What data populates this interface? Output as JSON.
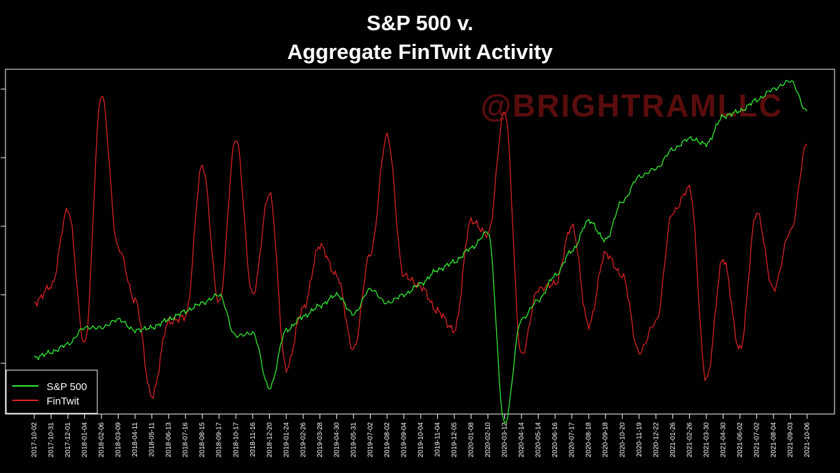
{
  "chart_data": {
    "type": "line",
    "title_lines": [
      "S&P 500 v.",
      "Aggregate FinTwit Activity"
    ],
    "watermark": "@BRIGHTRAMLLC",
    "xlabel": "",
    "ylabel": "",
    "x": [
      "2017-10-02",
      "2017-10-31",
      "2017-12-01",
      "2018-01-04",
      "2018-02-06",
      "2018-03-09",
      "2018-04-11",
      "2018-05-11",
      "2018-06-13",
      "2018-07-16",
      "2018-08-15",
      "2018-09-17",
      "2018-10-17",
      "2018-11-16",
      "2018-12-20",
      "2019-01-24",
      "2019-02-26",
      "2019-03-28",
      "2019-04-30",
      "2019-05-31",
      "2019-07-02",
      "2019-08-02",
      "2019-09-04",
      "2019-10-04",
      "2019-11-04",
      "2019-12-05",
      "2020-01-08",
      "2020-02-10",
      "2020-03-12",
      "2020-04-14",
      "2020-05-14",
      "2020-06-16",
      "2020-07-17",
      "2020-08-18",
      "2020-09-18",
      "2020-10-20",
      "2020-11-19",
      "2020-12-22",
      "2021-01-26",
      "2021-02-26",
      "2021-03-30",
      "2021-04-30",
      "2021-06-02",
      "2021-07-02",
      "2021-08-04",
      "2021-09-03",
      "2021-10-06"
    ],
    "y_tick_count": 5,
    "ylim": [
      0,
      100
    ],
    "grid": false,
    "legend_position": "bottom-left",
    "series": [
      {
        "name": "S&P 500",
        "color": "#33ee33",
        "values": [
          2,
          4,
          7,
          13,
          13,
          16,
          12,
          13,
          16,
          19,
          22,
          25,
          10,
          11,
          -9,
          12,
          17,
          21,
          25,
          18,
          27,
          22,
          25,
          29,
          34,
          37,
          42,
          48,
          -22,
          16,
          23,
          32,
          41,
          52,
          45,
          59,
          68,
          71,
          78,
          82,
          80,
          90,
          92,
          96,
          100,
          103,
          92
        ]
      },
      {
        "name": "FinTwit",
        "color": "#dd2222",
        "values": [
          22,
          28,
          56,
          7,
          98,
          42,
          23,
          -12,
          15,
          17,
          72,
          22,
          82,
          25,
          62,
          -2,
          20,
          43,
          32,
          5,
          40,
          83,
          32,
          28,
          19,
          12,
          52,
          47,
          92,
          3,
          27,
          29,
          50,
          14,
          40,
          32,
          4,
          15,
          55,
          64,
          -6,
          38,
          5,
          55,
          27,
          48,
          80
        ]
      }
    ]
  }
}
